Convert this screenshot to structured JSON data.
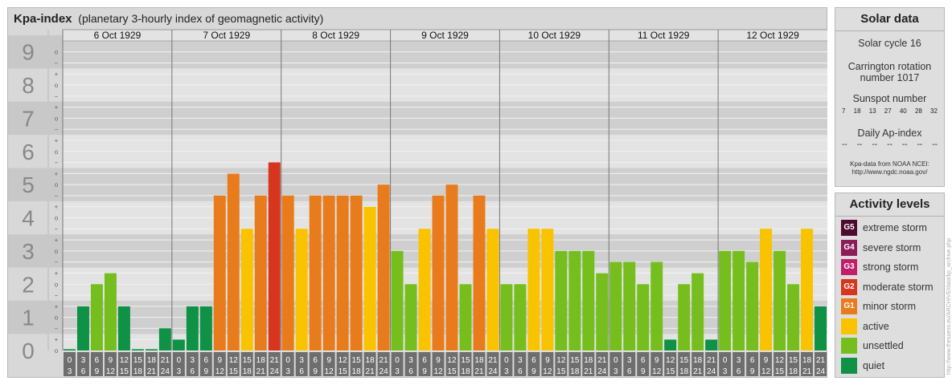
{
  "header": {
    "title": "Kpa-index",
    "subtitle": "(planetary 3-hourly index of geomagnetic activity)"
  },
  "chart_data": {
    "type": "bar",
    "title": "Kpa-index",
    "subtitle": "(planetary 3-hourly index of geomagnetic activity)",
    "ylim": [
      0,
      9.33
    ],
    "yticks": [
      "0",
      "1",
      "2",
      "3",
      "4",
      "5",
      "6",
      "7",
      "8",
      "9"
    ],
    "sub_ticks": [
      "o",
      "+",
      "−"
    ],
    "dates": [
      "6 Oct 1929",
      "7 Oct 1929",
      "8 Oct 1929",
      "9 Oct 1929",
      "10 Oct 1929",
      "11 Oct 1929",
      "12 Oct 1929"
    ],
    "interval_labels": [
      [
        "0",
        "3"
      ],
      [
        "3",
        "6"
      ],
      [
        "6",
        "9"
      ],
      [
        "9",
        "12"
      ],
      [
        "12",
        "15"
      ],
      [
        "15",
        "18"
      ],
      [
        "18",
        "21"
      ],
      [
        "21",
        "24"
      ]
    ],
    "values": [
      [
        0.0,
        1.33,
        2.0,
        2.33,
        1.33,
        0.0,
        0.0,
        0.67
      ],
      [
        0.33,
        1.33,
        1.33,
        4.67,
        5.33,
        3.67,
        4.67,
        5.67
      ],
      [
        4.67,
        3.67,
        4.67,
        4.67,
        4.67,
        4.67,
        4.33,
        5.0
      ],
      [
        3.0,
        2.0,
        3.67,
        4.67,
        5.0,
        2.0,
        4.67,
        3.67
      ],
      [
        2.0,
        2.0,
        3.67,
        3.67,
        3.0,
        3.0,
        3.0,
        2.33
      ],
      [
        2.67,
        2.67,
        2.0,
        2.67,
        0.33,
        2.0,
        2.33,
        0.33
      ],
      [
        3.0,
        3.0,
        2.67,
        3.67,
        3.0,
        2.0,
        3.67,
        1.33
      ]
    ],
    "colors": {
      "quiet": "#0f9146",
      "unsettled": "#76be1e",
      "active": "#f9c300",
      "minor_storm": "#e87c1c",
      "moderate_storm": "#d8351f",
      "strong_storm": "#c21f6b",
      "severe_storm": "#8c1d58",
      "extreme_storm": "#4e0b30"
    },
    "grid": true
  },
  "solar": {
    "title": "Solar data",
    "cycle": "Solar cycle 16",
    "carrington_1": "Carrington rotation",
    "carrington_2": "number 1017",
    "sunspot_label": "Sunspot number",
    "sunspots": [
      "7",
      "18",
      "13",
      "27",
      "40",
      "28",
      "32"
    ],
    "ap_label": "Daily Ap-index",
    "ap_values": [
      "--",
      "--",
      "--",
      "--",
      "--",
      "--",
      "--"
    ],
    "source_1": "Kpa-data from NOAA NCEI:",
    "source_2": "http://www.ngdc.noaa.gov/"
  },
  "activity": {
    "title": "Activity levels",
    "items": [
      {
        "code": "G5",
        "label": "extreme storm",
        "color": "#4e0b30"
      },
      {
        "code": "G4",
        "label": "severe storm",
        "color": "#8c1d58"
      },
      {
        "code": "G3",
        "label": "strong storm",
        "color": "#c21f6b"
      },
      {
        "code": "G2",
        "label": "moderate storm",
        "color": "#d8351f"
      },
      {
        "code": "G1",
        "label": "minor storm",
        "color": "#e87c1c"
      },
      {
        "code": "",
        "label": "active",
        "color": "#f9c300"
      },
      {
        "code": "",
        "label": "unsettled",
        "color": "#76be1e"
      },
      {
        "code": "",
        "label": "quiet",
        "color": "#0f9146"
      }
    ]
  },
  "credit": "http://www.thesuess.eu/ARCHIVE/data/kp_archive.php"
}
